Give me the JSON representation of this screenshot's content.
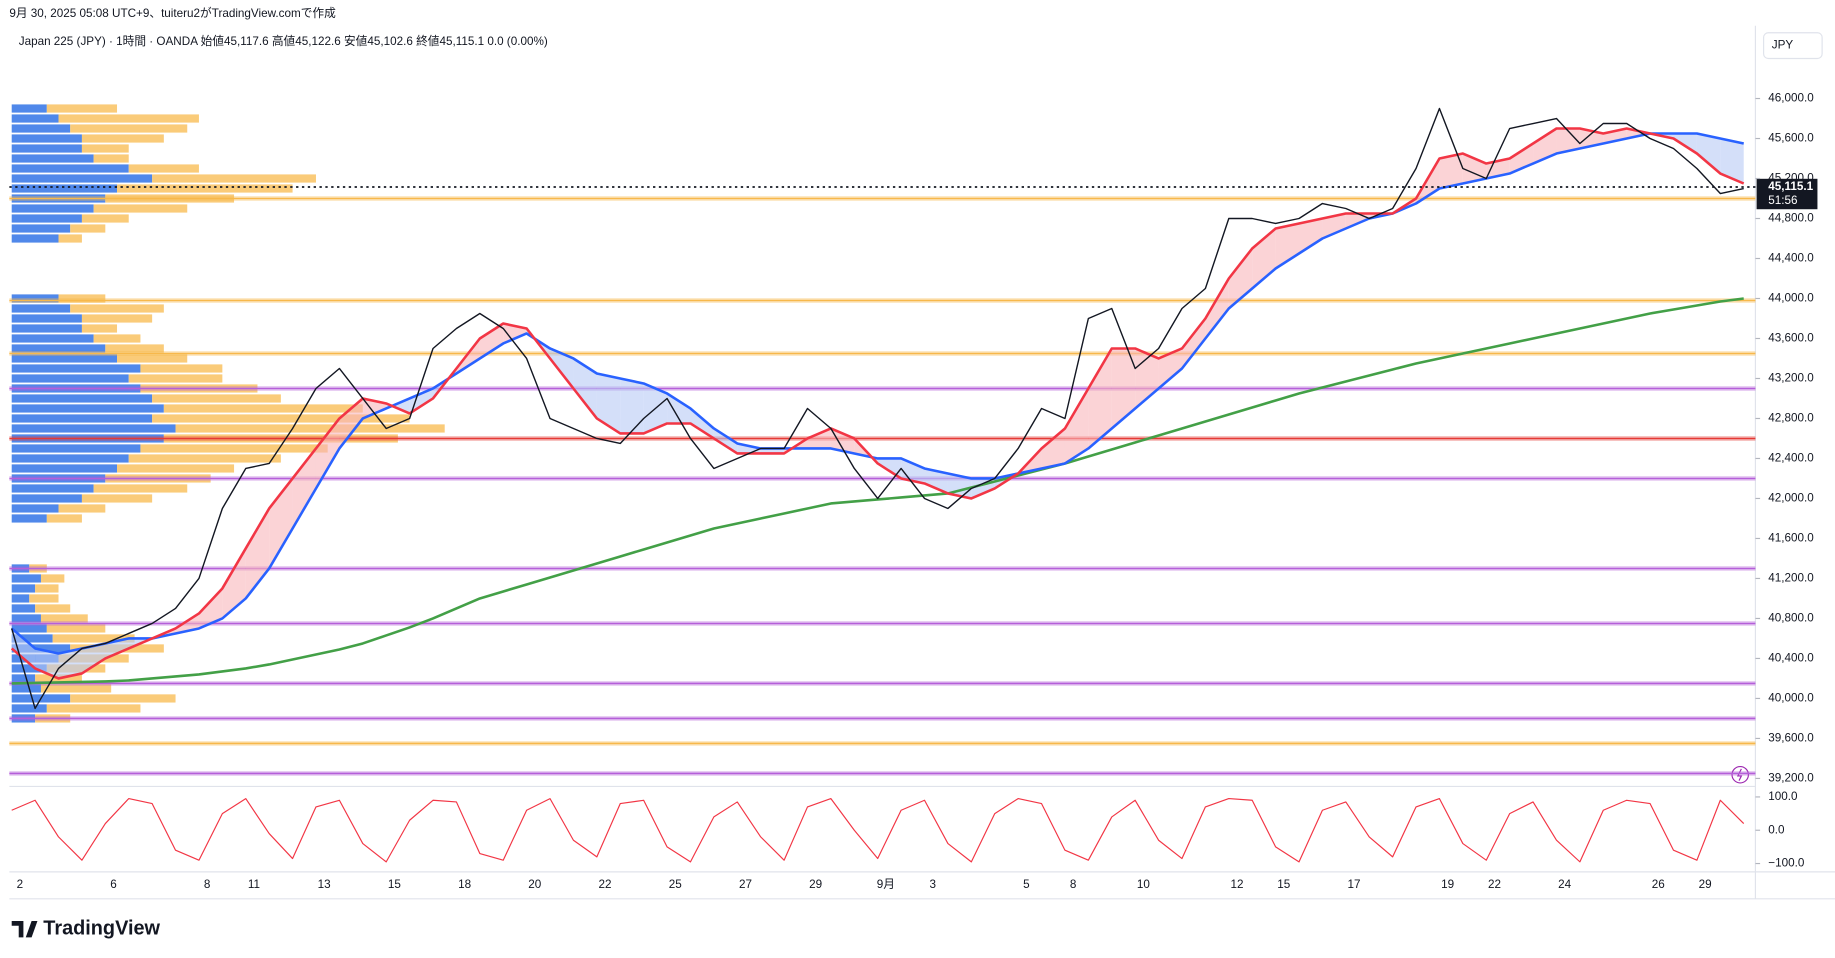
{
  "header": {
    "created": "9月 30, 2025 05:08 UTC+9、tuiteru2がTradingView.comで作成",
    "legend": "Japan 225 (JPY) · 1時間 · OANDA  始値45,117.6  高値45,122.6  安値45,102.6  終値45,115.1  0.0 (0.00%)",
    "currency": "JPY",
    "brand": "TradingView"
  },
  "chart_data": {
    "type": "line",
    "categories": [
      "2",
      null,
      null,
      null,
      "6",
      null,
      null,
      null,
      "8",
      null,
      "11",
      null,
      null,
      "13",
      null,
      null,
      "15",
      null,
      null,
      "18",
      null,
      null,
      "20",
      null,
      null,
      "22",
      null,
      null,
      "25",
      null,
      null,
      "27",
      null,
      null,
      "29",
      null,
      null,
      "9月",
      null,
      "3",
      null,
      null,
      null,
      "5",
      null,
      "8",
      null,
      null,
      "10",
      null,
      null,
      null,
      "12",
      null,
      "15",
      null,
      null,
      "17",
      null,
      null,
      null,
      "19",
      null,
      "22",
      null,
      null,
      "24",
      null,
      null,
      null,
      "26",
      null,
      "29",
      null,
      null
    ],
    "series": [
      {
        "color": "#131722",
        "values": [
          40700,
          39900,
          40300,
          40500,
          40550,
          40650,
          40750,
          40900,
          41200,
          41900,
          42300,
          42350,
          42700,
          43100,
          43300,
          43000,
          42700,
          42800,
          43500,
          43700,
          43850,
          43700,
          43400,
          42800,
          42700,
          42600,
          42550,
          42800,
          43000,
          42600,
          42300,
          42400,
          42500,
          42500,
          42900,
          42700,
          42300,
          42000,
          42300,
          42000,
          41900,
          42100,
          42200,
          42500,
          42900,
          42800,
          43800,
          43900,
          43300,
          43500,
          43900,
          44100,
          44800,
          44800,
          44750,
          44800,
          44950,
          44900,
          44800,
          44900,
          45300,
          45900,
          45300,
          45200,
          45700,
          45750,
          45800,
          45550,
          45750,
          45750,
          45600,
          45500,
          45300,
          45050,
          45100
        ]
      },
      {
        "color": "#f23645",
        "values": [
          40500,
          40300,
          40200,
          40250,
          40400,
          40500,
          40600,
          40700,
          40850,
          41100,
          41500,
          41900,
          42200,
          42500,
          42800,
          43000,
          42950,
          42850,
          43000,
          43300,
          43600,
          43750,
          43700,
          43400,
          43100,
          42800,
          42650,
          42650,
          42750,
          42750,
          42600,
          42450,
          42450,
          42450,
          42600,
          42700,
          42600,
          42350,
          42200,
          42150,
          42050,
          42000,
          42100,
          42250,
          42500,
          42700,
          43100,
          43500,
          43500,
          43400,
          43500,
          43800,
          44200,
          44500,
          44700,
          44750,
          44800,
          44850,
          44850,
          44850,
          45000,
          45400,
          45450,
          45350,
          45400,
          45550,
          45700,
          45700,
          45650,
          45700,
          45650,
          45600,
          45450,
          45250,
          45150
        ]
      },
      {
        "color": "#2962ff",
        "values": [
          40700,
          40500,
          40450,
          40500,
          40550,
          40600,
          40600,
          40650,
          40700,
          40800,
          41000,
          41300,
          41700,
          42100,
          42500,
          42800,
          42900,
          43000,
          43100,
          43250,
          43400,
          43550,
          43650,
          43500,
          43400,
          43250,
          43200,
          43150,
          43050,
          42900,
          42700,
          42550,
          42500,
          42500,
          42500,
          42500,
          42450,
          42400,
          42400,
          42300,
          42250,
          42200,
          42200,
          42250,
          42300,
          42350,
          42500,
          42700,
          42900,
          43100,
          43300,
          43600,
          43900,
          44100,
          44300,
          44450,
          44600,
          44700,
          44800,
          44850,
          44950,
          45100,
          45150,
          45200,
          45250,
          45350,
          45450,
          45500,
          45550,
          45600,
          45650,
          45650,
          45650,
          45600,
          45550
        ]
      },
      {
        "color": "#43a047",
        "values": [
          40150,
          40155,
          40160,
          40165,
          40170,
          40180,
          40200,
          40220,
          40240,
          40270,
          40300,
          40340,
          40390,
          40440,
          40490,
          40550,
          40630,
          40710,
          40800,
          40900,
          41000,
          41070,
          41140,
          41210,
          41280,
          41350,
          41420,
          41490,
          41560,
          41630,
          41700,
          41750,
          41800,
          41850,
          41900,
          41950,
          41970,
          41990,
          42010,
          42030,
          42050,
          42110,
          42170,
          42230,
          42290,
          42350,
          42420,
          42490,
          42560,
          42630,
          42700,
          42770,
          42840,
          42910,
          42980,
          43050,
          43110,
          43170,
          43230,
          43290,
          43350,
          43400,
          43450,
          43500,
          43550,
          43600,
          43650,
          43700,
          43750,
          43800,
          43850,
          43890,
          43930,
          43970,
          44000
        ]
      }
    ],
    "ylim": [
      39120,
      46400
    ],
    "yticks": [
      {
        "value": 39200,
        "label": "39,200.0"
      },
      {
        "value": 39600,
        "label": "39,600.0"
      },
      {
        "value": 40000,
        "label": "40,000.0"
      },
      {
        "value": 40400,
        "label": "40,400.0"
      },
      {
        "value": 40800,
        "label": "40,800.0"
      },
      {
        "value": 41200,
        "label": "41,200.0"
      },
      {
        "value": 41600,
        "label": "41,600.0"
      },
      {
        "value": 42000,
        "label": "42,000.0"
      },
      {
        "value": 42400,
        "label": "42,400.0"
      },
      {
        "value": 42800,
        "label": "42,800.0"
      },
      {
        "value": 43200,
        "label": "43,200.0"
      },
      {
        "value": 43600,
        "label": "43,600.0"
      },
      {
        "value": 44000,
        "label": "44,000.0"
      },
      {
        "value": 44400,
        "label": "44,400.0"
      },
      {
        "value": 44800,
        "label": "44,800.0"
      },
      {
        "value": 45200,
        "label": "45,200.0"
      },
      {
        "value": 45600,
        "label": "45,600.0"
      },
      {
        "value": 46000,
        "label": "46,000.0"
      }
    ],
    "levels": [
      {
        "value": 45000,
        "color": "#f7b84b"
      },
      {
        "value": 43980,
        "color": "#f7b84b"
      },
      {
        "value": 43450,
        "color": "#f7b84b"
      },
      {
        "value": 39550,
        "color": "#f7b84b"
      },
      {
        "value": 43100,
        "color": "#b55fd9"
      },
      {
        "value": 42200,
        "color": "#b55fd9"
      },
      {
        "value": 41300,
        "color": "#b55fd9"
      },
      {
        "value": 40750,
        "color": "#b55fd9"
      },
      {
        "value": 40150,
        "color": "#b55fd9"
      },
      {
        "value": 39800,
        "color": "#b55fd9"
      },
      {
        "value": 39250,
        "color": "#b55fd9"
      },
      {
        "value": 42600,
        "color": "#e53935"
      }
    ],
    "last_price": {
      "value": 45115.1,
      "label": "45,115.1"
    },
    "countdown": "51:56",
    "volume_profile": {
      "prices": [
        39800,
        39900,
        40000,
        40100,
        40200,
        40300,
        40400,
        40500,
        40600,
        40700,
        40800,
        40900,
        41000,
        41100,
        41200,
        41300,
        41800,
        41900,
        42000,
        42100,
        42200,
        42300,
        42400,
        42500,
        42600,
        42700,
        42800,
        42900,
        43000,
        43100,
        43200,
        43300,
        43400,
        43500,
        43600,
        43700,
        43800,
        43900,
        44000,
        44600,
        44700,
        44800,
        44900,
        45000,
        45100,
        45200,
        45300,
        45400,
        45500,
        45600,
        45700,
        45800,
        45900
      ],
      "series": [
        {
          "color": "#3d7be8",
          "values": [
            20,
            30,
            50,
            25,
            20,
            30,
            40,
            50,
            35,
            30,
            25,
            20,
            15,
            20,
            25,
            15,
            30,
            40,
            60,
            70,
            80,
            90,
            100,
            110,
            130,
            140,
            120,
            130,
            120,
            110,
            100,
            110,
            90,
            80,
            70,
            60,
            60,
            50,
            40,
            40,
            50,
            60,
            70,
            80,
            90,
            120,
            100,
            70,
            60,
            60,
            50,
            40,
            30
          ]
        },
        {
          "color": "#f9c56a",
          "values": [
            30,
            80,
            90,
            60,
            40,
            50,
            60,
            80,
            70,
            50,
            40,
            30,
            25,
            20,
            20,
            15,
            30,
            40,
            60,
            80,
            90,
            100,
            130,
            160,
            200,
            230,
            220,
            170,
            110,
            100,
            80,
            70,
            60,
            50,
            40,
            30,
            60,
            80,
            40,
            20,
            30,
            40,
            80,
            110,
            150,
            140,
            60,
            30,
            40,
            70,
            100,
            120,
            60
          ]
        }
      ]
    },
    "oscillator": {
      "color": "#f23645",
      "ylim": [
        -125,
        121
      ],
      "yticks": [
        {
          "value": 100,
          "label": "100.0"
        },
        {
          "value": 0,
          "label": "0.0"
        },
        {
          "value": -100,
          "label": "−100.0"
        }
      ],
      "values": [
        60,
        90,
        -20,
        -90,
        20,
        95,
        80,
        -60,
        -90,
        50,
        95,
        -10,
        -85,
        70,
        90,
        -40,
        -95,
        30,
        90,
        85,
        -70,
        -90,
        60,
        95,
        -30,
        -80,
        80,
        90,
        -50,
        -95,
        40,
        85,
        -20,
        -90,
        70,
        95,
        0,
        -85,
        60,
        90,
        -40,
        -95,
        50,
        95,
        80,
        -60,
        -90,
        40,
        90,
        -30,
        -85,
        70,
        95,
        90,
        -50,
        -95,
        60,
        85,
        -20,
        -80,
        70,
        95,
        -40,
        -90,
        50,
        85,
        -30,
        -95,
        60,
        90,
        80,
        -60,
        -90,
        90,
        20
      ]
    }
  }
}
